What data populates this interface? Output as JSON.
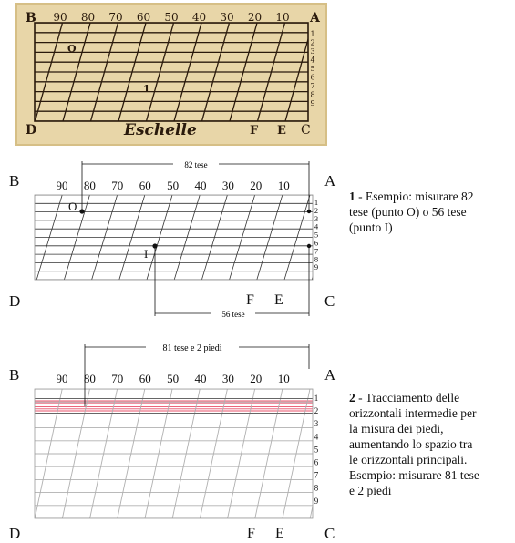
{
  "engraving": {
    "corner_b": "B",
    "corner_a": "A",
    "corner_d": "D",
    "corner_c": "C",
    "bottom_f": "F",
    "bottom_e": "E",
    "title": "Eschelle",
    "point_o": "O",
    "point_i": "1",
    "scale_numbers": [
      "90",
      "80",
      "70",
      "60",
      "50",
      "40",
      "30",
      "20",
      "10"
    ],
    "side_numbers": [
      "1",
      "2",
      "3",
      "4",
      "5",
      "6",
      "7",
      "8",
      "9"
    ]
  },
  "diagram1": {
    "corner_b": "B",
    "corner_a": "A",
    "corner_d": "D",
    "corner_c": "C",
    "bottom_f": "F",
    "bottom_e": "E",
    "top_dimension": "82 tese",
    "bottom_dimension": "56 tese",
    "point_o": "O",
    "point_i": "I",
    "scale_numbers": [
      "90",
      "80",
      "70",
      "60",
      "50",
      "40",
      "30",
      "20",
      "10"
    ],
    "side_numbers": [
      "1",
      "2",
      "3",
      "4",
      "5",
      "6",
      "7",
      "8",
      "9"
    ],
    "caption_number": "1",
    "caption_lines": [
      " - Esempio: misurare 82",
      "tese (punto O) o 56 tese",
      "(punto I)"
    ]
  },
  "diagram2": {
    "corner_b": "B",
    "corner_a": "A",
    "corner_d": "D",
    "corner_c": "C",
    "bottom_f": "F",
    "bottom_e": "E",
    "top_dimension": "81 tese e 2 piedi",
    "scale_numbers": [
      "90",
      "80",
      "70",
      "60",
      "50",
      "40",
      "30",
      "20",
      "10"
    ],
    "side_numbers": [
      "1",
      "2",
      "3",
      "4",
      "5",
      "6",
      "7",
      "8",
      "9"
    ],
    "caption_number": "2",
    "caption_lines": [
      " - Tracciamento delle",
      "orizzontali intermedie per",
      "la misura dei piedi,",
      "aumentando lo spazio tra",
      "le orizzontali principali.",
      "Esempio: misurare 81 tese",
      "e 2 piedi"
    ],
    "highlight_color": "#e8506a"
  },
  "colors": {
    "parchment": "#e8d6a8",
    "ink": "#2a1a0c",
    "line": "#333333",
    "grid": "#b4b4b4"
  }
}
